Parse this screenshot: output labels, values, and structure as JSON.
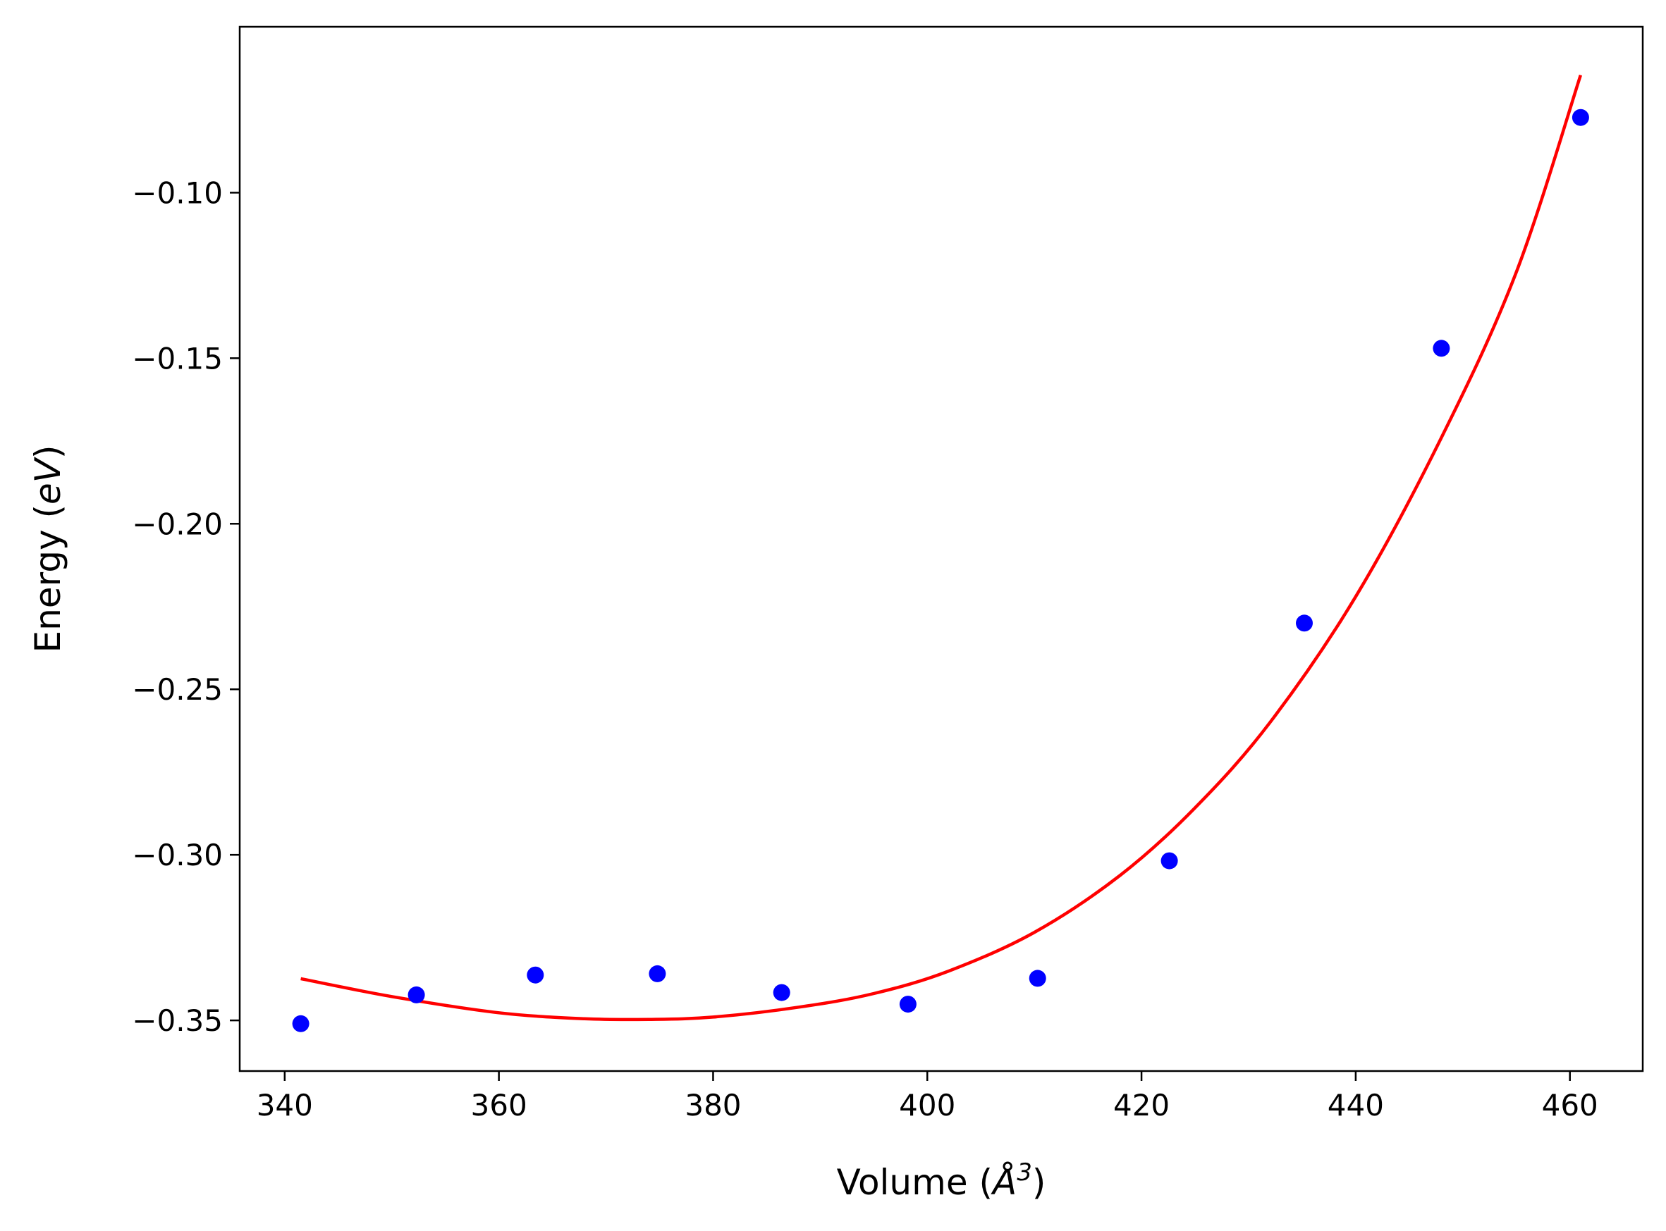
{
  "colors": {
    "points": "#0000ff",
    "fit_line": "#ff0000",
    "axes": "#000000",
    "background": "#ffffff"
  },
  "chart_data": {
    "type": "scatter",
    "xlabel": {
      "prefix": "Volume (",
      "unit_letter": "Å",
      "unit_exp": "3",
      "suffix": ")"
    },
    "ylabel": {
      "prefix": "Energy (",
      "unit": "eV",
      "suffix": ")"
    },
    "xlim": [
      335.8,
      466.8
    ],
    "ylim": [
      -0.3653,
      -0.0499
    ],
    "grid": false,
    "legend": "none",
    "x_ticks": [
      {
        "value": 340,
        "label": "340"
      },
      {
        "value": 360,
        "label": "360"
      },
      {
        "value": 380,
        "label": "380"
      },
      {
        "value": 400,
        "label": "400"
      },
      {
        "value": 420,
        "label": "420"
      },
      {
        "value": 440,
        "label": "440"
      },
      {
        "value": 460,
        "label": "460"
      }
    ],
    "y_ticks": [
      {
        "value": -0.1,
        "label": "−0.10"
      },
      {
        "value": -0.15,
        "label": "−0.15"
      },
      {
        "value": -0.2,
        "label": "−0.20"
      },
      {
        "value": -0.25,
        "label": "−0.25"
      },
      {
        "value": -0.3,
        "label": "−0.30"
      },
      {
        "value": -0.35,
        "label": "−0.35"
      }
    ],
    "series": [
      {
        "kind": "points",
        "x": [
          341.5,
          352.3,
          363.4,
          374.8,
          386.4,
          398.2,
          410.3,
          422.6,
          435.2,
          448.0,
          461.0
        ],
        "y": [
          -0.351,
          -0.3423,
          -0.3363,
          -0.3359,
          -0.3416,
          -0.3451,
          -0.3373,
          -0.3018,
          -0.23,
          -0.147,
          -0.0773
        ]
      },
      {
        "kind": "fit-line",
        "x": [
          341.5,
          350,
          360,
          368,
          374,
          380,
          388,
          395,
          402,
          410,
          418,
          425,
          432,
          440,
          448,
          455,
          461.0
        ],
        "y": [
          -0.3374,
          -0.3428,
          -0.3477,
          -0.3495,
          -0.3497,
          -0.349,
          -0.346,
          -0.3419,
          -0.3351,
          -0.3234,
          -0.3062,
          -0.2858,
          -0.26,
          -0.222,
          -0.174,
          -0.124,
          -0.0645
        ]
      }
    ]
  }
}
